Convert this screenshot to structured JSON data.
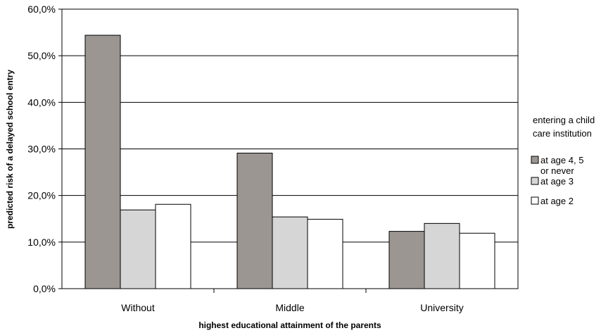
{
  "chart_data": {
    "type": "bar",
    "categories": [
      "Without",
      "Middle",
      "University"
    ],
    "series": [
      {
        "name": "at age 4, 5 or never",
        "name_lines": [
          "at age 4, 5",
          "or never"
        ],
        "color": "#9b9692",
        "values": [
          54.4,
          29.1,
          12.3
        ]
      },
      {
        "name": "at age 3",
        "name_lines": [
          "at age 3"
        ],
        "color": "#d6d6d6",
        "values": [
          16.9,
          15.4,
          14.0
        ]
      },
      {
        "name": "at age 2",
        "name_lines": [
          "at age 2"
        ],
        "color": "#ffffff",
        "values": [
          18.1,
          14.9,
          11.9
        ]
      }
    ],
    "ylim": [
      0,
      60
    ],
    "yticks": [
      "0,0%",
      "10,0%",
      "20,0%",
      "30,0%",
      "40,0%",
      "50,0%",
      "60,0%"
    ],
    "xlabel": "highest educational attainment of the parents",
    "ylabel": "predicted risk of a delayed school entry",
    "legend_title_lines": [
      "entering a child",
      "care institution"
    ],
    "grid": true,
    "legend_position": "right"
  }
}
